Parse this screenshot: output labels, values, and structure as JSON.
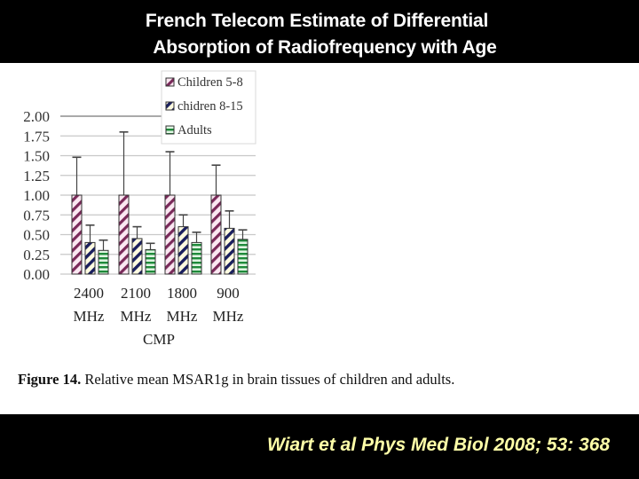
{
  "slide": {
    "title_line1": "French Telecom Estimate of Differential",
    "title_line2": "Absorption of  Radiofrequency with Age",
    "citation": "Wiart et al Phys Med Biol 2008; 53: 368",
    "colors": {
      "band": "#000000",
      "title_text": "#ffffff",
      "citation_text": "#ffffa8"
    }
  },
  "figure": {
    "caption_label": "Figure 14.",
    "caption_text": " Relative mean MSAR1g in brain tissues of children and adults."
  },
  "chart_data": {
    "type": "bar",
    "title": "Relative mean MSAR1g in brain tissues of children and adults",
    "xlabel": "CMP",
    "ylabel": "",
    "ylim": [
      0,
      2
    ],
    "yticks": [
      "0.00",
      "0.25",
      "0.50",
      "0.75",
      "1.00",
      "1.25",
      "1.50",
      "1.75",
      "2.00"
    ],
    "grid": true,
    "legend_position": "top-right",
    "categories": [
      "2400 MHz",
      "2100 MHz",
      "1800 MHz",
      "900 MHz"
    ],
    "category_lines": [
      [
        "2400",
        "MHz"
      ],
      [
        "2100",
        "MHz"
      ],
      [
        "1800",
        "MHz"
      ],
      [
        "900",
        "MHz"
      ]
    ],
    "series": [
      {
        "name": "Children 5-8",
        "pattern": "diagonal-stripes",
        "color": "#7a2a5a",
        "values": [
          1.0,
          1.0,
          1.0,
          1.0
        ],
        "error_upper": [
          1.48,
          1.8,
          1.55,
          1.38
        ]
      },
      {
        "name": "chidren 8-15",
        "pattern": "diagonal-stripes",
        "color": "#1a1f5e",
        "values": [
          0.4,
          0.45,
          0.6,
          0.58
        ],
        "error_upper": [
          0.62,
          0.6,
          0.75,
          0.8
        ]
      },
      {
        "name": "Adults",
        "pattern": "horizontal-stripes",
        "color": "#1f8a3a",
        "values": [
          0.3,
          0.31,
          0.4,
          0.44
        ],
        "error_upper": [
          0.43,
          0.39,
          0.53,
          0.56
        ]
      }
    ]
  }
}
